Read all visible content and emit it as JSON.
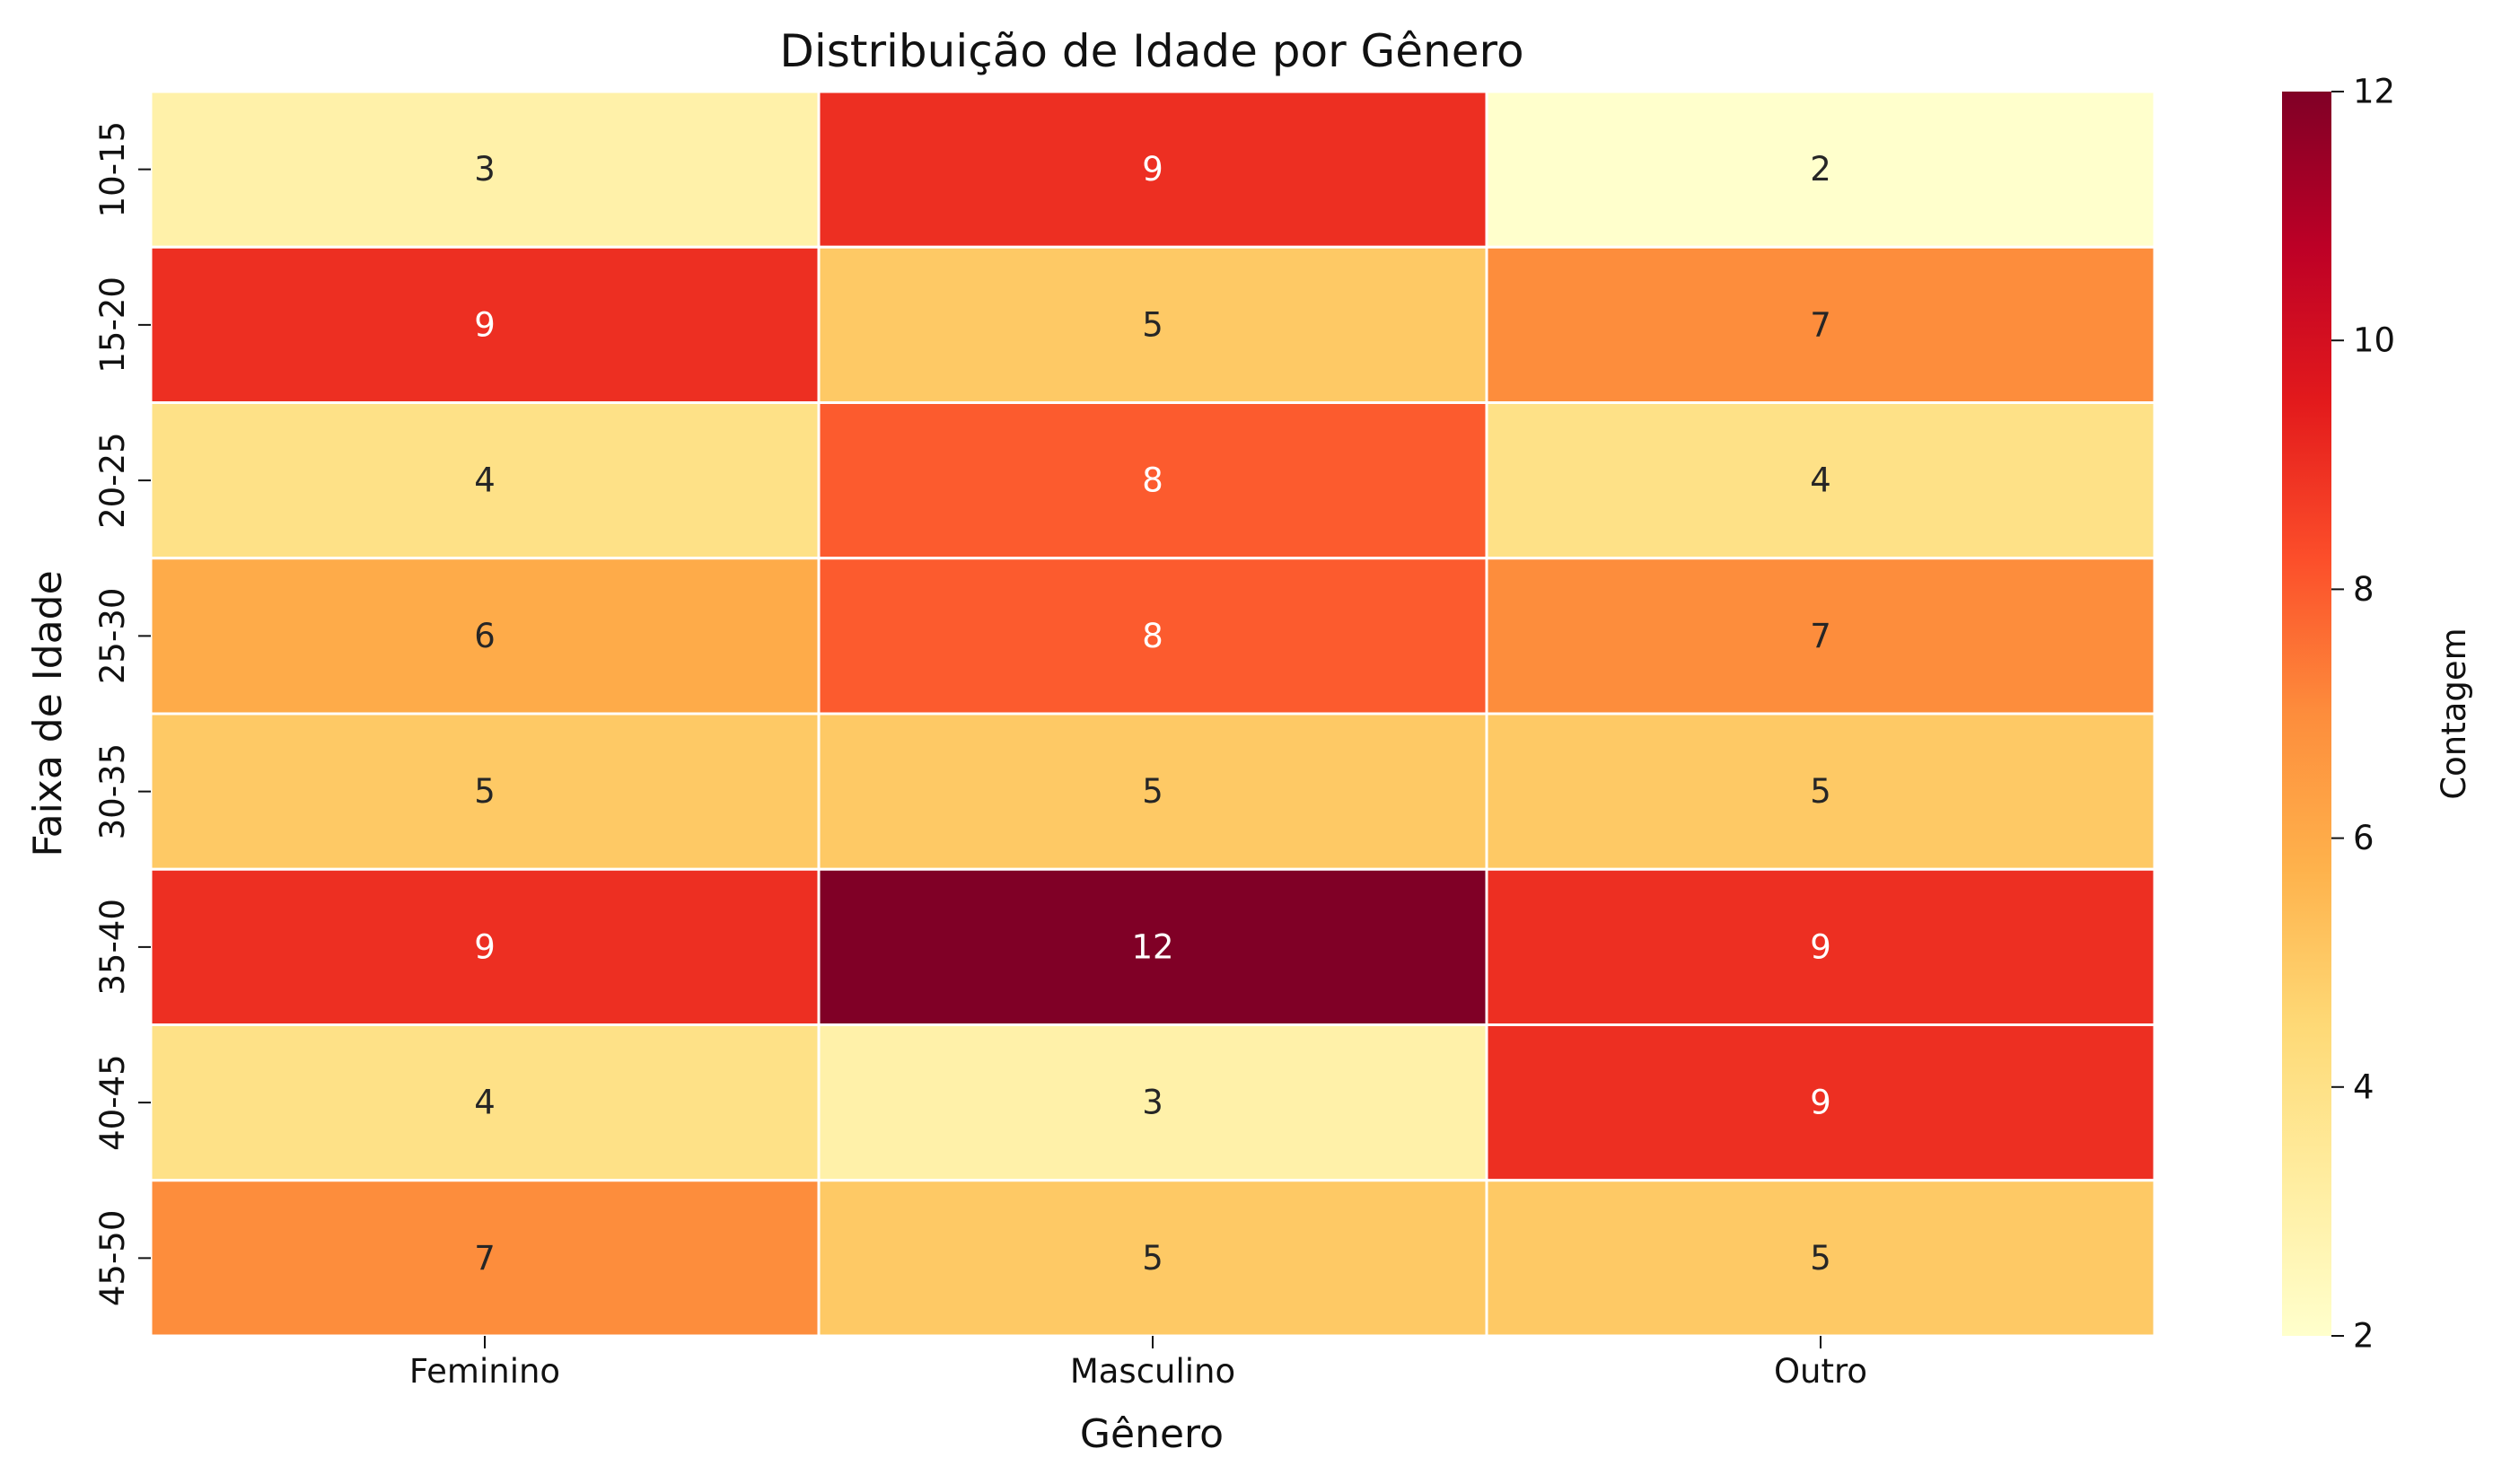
{
  "chart_data": {
    "type": "heatmap",
    "title": "Distribuição de Idade por Gênero",
    "xlabel": "Gênero",
    "ylabel": "Faixa de Idade",
    "x_categories": [
      "Feminino",
      "Masculino",
      "Outro"
    ],
    "y_categories": [
      "10-15",
      "15-20",
      "20-25",
      "25-30",
      "30-35",
      "35-40",
      "40-45",
      "45-50"
    ],
    "values": [
      [
        3,
        9,
        2
      ],
      [
        9,
        5,
        7
      ],
      [
        4,
        8,
        4
      ],
      [
        6,
        8,
        7
      ],
      [
        5,
        5,
        5
      ],
      [
        9,
        12,
        9
      ],
      [
        4,
        3,
        9
      ],
      [
        7,
        5,
        5
      ]
    ],
    "colorbar": {
      "label": "Contagem",
      "range": [
        2,
        12
      ],
      "ticks": [
        2,
        4,
        6,
        8,
        10,
        12
      ],
      "colormap": "YlOrRd"
    },
    "annotations": true,
    "grid": false
  }
}
